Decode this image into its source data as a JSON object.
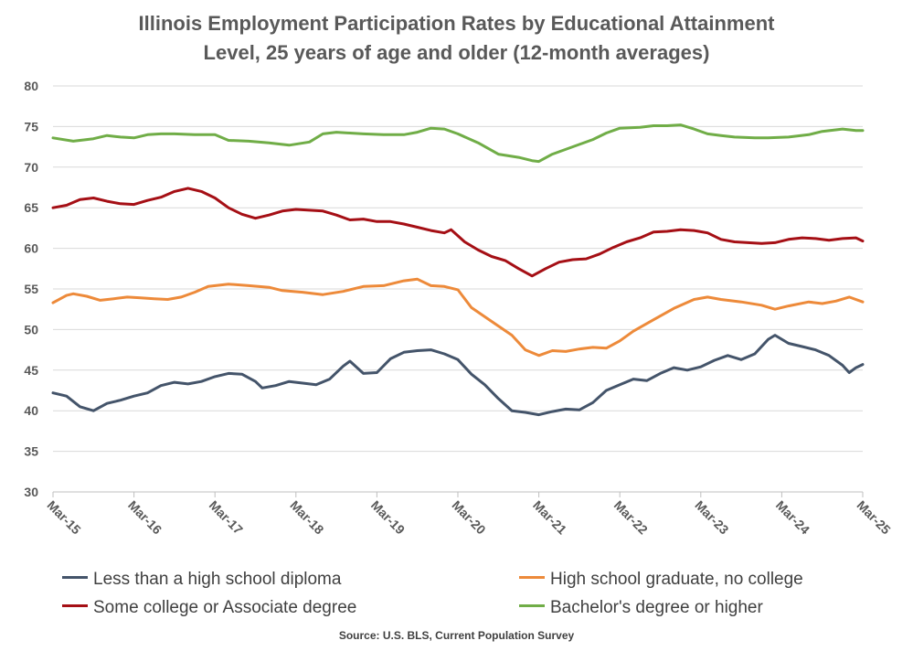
{
  "chart_data": {
    "type": "line",
    "title_line_1": "Illinois Employment Participation Rates by Educational Attainment",
    "title_line_2": "Level, 25 years of age and older (12-month averages)",
    "source": "Source: U.S. BLS, Current Population Survey",
    "ylim": [
      30,
      80
    ],
    "y_ticks": [
      30,
      35,
      40,
      45,
      50,
      55,
      60,
      65,
      70,
      75,
      80
    ],
    "x_range": [
      "2015-03",
      "2025-03"
    ],
    "x_ticks": [
      {
        "label": "Mar-15",
        "date": "2015-03"
      },
      {
        "label": "Mar-16",
        "date": "2016-03"
      },
      {
        "label": "Mar-17",
        "date": "2017-03"
      },
      {
        "label": "Mar-18",
        "date": "2018-03"
      },
      {
        "label": "Mar-19",
        "date": "2019-03"
      },
      {
        "label": "Mar-20",
        "date": "2020-03"
      },
      {
        "label": "Mar-21",
        "date": "2021-03"
      },
      {
        "label": "Mar-22",
        "date": "2022-03"
      },
      {
        "label": "Mar-23",
        "date": "2023-03"
      },
      {
        "label": "Mar-24",
        "date": "2024-03"
      },
      {
        "label": "Mar-25",
        "date": "2025-03"
      }
    ],
    "grid": "horizontal",
    "legend_placement": "bottom",
    "series": [
      {
        "name": "Less than a high school diploma",
        "color": "#44546a",
        "points": [
          [
            "2015-03",
            42.2
          ],
          [
            "2015-05",
            41.8
          ],
          [
            "2015-07",
            40.5
          ],
          [
            "2015-09",
            40.0
          ],
          [
            "2015-11",
            40.9
          ],
          [
            "2016-01",
            41.3
          ],
          [
            "2016-03",
            41.8
          ],
          [
            "2016-05",
            42.2
          ],
          [
            "2016-07",
            43.1
          ],
          [
            "2016-09",
            43.5
          ],
          [
            "2016-11",
            43.3
          ],
          [
            "2017-01",
            43.6
          ],
          [
            "2017-03",
            44.2
          ],
          [
            "2017-05",
            44.6
          ],
          [
            "2017-07",
            44.5
          ],
          [
            "2017-09",
            43.6
          ],
          [
            "2017-10",
            42.8
          ],
          [
            "2017-12",
            43.1
          ],
          [
            "2018-02",
            43.6
          ],
          [
            "2018-04",
            43.4
          ],
          [
            "2018-06",
            43.2
          ],
          [
            "2018-08",
            43.9
          ],
          [
            "2018-10",
            45.5
          ],
          [
            "2018-11",
            46.1
          ],
          [
            "2019-01",
            44.6
          ],
          [
            "2019-03",
            44.7
          ],
          [
            "2019-05",
            46.4
          ],
          [
            "2019-07",
            47.2
          ],
          [
            "2019-09",
            47.4
          ],
          [
            "2019-11",
            47.5
          ],
          [
            "2020-01",
            47.0
          ],
          [
            "2020-03",
            46.3
          ],
          [
            "2020-05",
            44.5
          ],
          [
            "2020-07",
            43.2
          ],
          [
            "2020-09",
            41.5
          ],
          [
            "2020-11",
            40.0
          ],
          [
            "2021-01",
            39.8
          ],
          [
            "2021-03",
            39.5
          ],
          [
            "2021-05",
            39.9
          ],
          [
            "2021-07",
            40.2
          ],
          [
            "2021-09",
            40.1
          ],
          [
            "2021-11",
            41.0
          ],
          [
            "2022-01",
            42.5
          ],
          [
            "2022-03",
            43.2
          ],
          [
            "2022-05",
            43.9
          ],
          [
            "2022-07",
            43.7
          ],
          [
            "2022-09",
            44.6
          ],
          [
            "2022-11",
            45.3
          ],
          [
            "2023-01",
            45.0
          ],
          [
            "2023-03",
            45.4
          ],
          [
            "2023-05",
            46.2
          ],
          [
            "2023-07",
            46.8
          ],
          [
            "2023-09",
            46.3
          ],
          [
            "2023-11",
            47.0
          ],
          [
            "2024-01",
            48.8
          ],
          [
            "2024-02",
            49.3
          ],
          [
            "2024-04",
            48.3
          ],
          [
            "2024-06",
            47.9
          ],
          [
            "2024-08",
            47.5
          ],
          [
            "2024-10",
            46.8
          ],
          [
            "2024-12",
            45.6
          ],
          [
            "2025-01",
            44.7
          ],
          [
            "2025-02",
            45.3
          ],
          [
            "2025-03",
            45.7
          ]
        ]
      },
      {
        "name": "High school graduate, no college",
        "color": "#ed8a3a",
        "points": [
          [
            "2015-03",
            53.3
          ],
          [
            "2015-05",
            54.2
          ],
          [
            "2015-06",
            54.4
          ],
          [
            "2015-08",
            54.1
          ],
          [
            "2015-10",
            53.6
          ],
          [
            "2015-12",
            53.8
          ],
          [
            "2016-02",
            54.0
          ],
          [
            "2016-04",
            53.9
          ],
          [
            "2016-06",
            53.8
          ],
          [
            "2016-08",
            53.7
          ],
          [
            "2016-10",
            54.0
          ],
          [
            "2016-12",
            54.6
          ],
          [
            "2017-02",
            55.3
          ],
          [
            "2017-05",
            55.6
          ],
          [
            "2017-08",
            55.4
          ],
          [
            "2017-11",
            55.2
          ],
          [
            "2018-01",
            54.8
          ],
          [
            "2018-04",
            54.6
          ],
          [
            "2018-07",
            54.3
          ],
          [
            "2018-10",
            54.7
          ],
          [
            "2019-01",
            55.3
          ],
          [
            "2019-04",
            55.4
          ],
          [
            "2019-07",
            56.0
          ],
          [
            "2019-09",
            56.2
          ],
          [
            "2019-11",
            55.4
          ],
          [
            "2020-01",
            55.3
          ],
          [
            "2020-03",
            54.9
          ],
          [
            "2020-05",
            52.7
          ],
          [
            "2020-08",
            51.0
          ],
          [
            "2020-11",
            49.3
          ],
          [
            "2021-01",
            47.5
          ],
          [
            "2021-03",
            46.8
          ],
          [
            "2021-05",
            47.4
          ],
          [
            "2021-07",
            47.3
          ],
          [
            "2021-09",
            47.6
          ],
          [
            "2021-11",
            47.8
          ],
          [
            "2022-01",
            47.7
          ],
          [
            "2022-03",
            48.6
          ],
          [
            "2022-05",
            49.8
          ],
          [
            "2022-08",
            51.2
          ],
          [
            "2022-11",
            52.6
          ],
          [
            "2023-02",
            53.7
          ],
          [
            "2023-04",
            54.0
          ],
          [
            "2023-06",
            53.7
          ],
          [
            "2023-09",
            53.4
          ],
          [
            "2023-12",
            53.0
          ],
          [
            "2024-02",
            52.5
          ],
          [
            "2024-04",
            52.9
          ],
          [
            "2024-07",
            53.4
          ],
          [
            "2024-09",
            53.2
          ],
          [
            "2024-11",
            53.5
          ],
          [
            "2025-01",
            54.0
          ],
          [
            "2025-03",
            53.4
          ]
        ]
      },
      {
        "name": "Some college or Associate degree",
        "color": "#a50f15",
        "points": [
          [
            "2015-03",
            65.0
          ],
          [
            "2015-05",
            65.3
          ],
          [
            "2015-07",
            66.0
          ],
          [
            "2015-09",
            66.2
          ],
          [
            "2015-11",
            65.8
          ],
          [
            "2016-01",
            65.5
          ],
          [
            "2016-03",
            65.4
          ],
          [
            "2016-05",
            65.9
          ],
          [
            "2016-07",
            66.3
          ],
          [
            "2016-09",
            67.0
          ],
          [
            "2016-11",
            67.4
          ],
          [
            "2017-01",
            67.0
          ],
          [
            "2017-03",
            66.2
          ],
          [
            "2017-05",
            65.0
          ],
          [
            "2017-07",
            64.2
          ],
          [
            "2017-09",
            63.7
          ],
          [
            "2017-11",
            64.1
          ],
          [
            "2018-01",
            64.6
          ],
          [
            "2018-03",
            64.8
          ],
          [
            "2018-05",
            64.7
          ],
          [
            "2018-07",
            64.6
          ],
          [
            "2018-09",
            64.1
          ],
          [
            "2018-11",
            63.5
          ],
          [
            "2019-01",
            63.6
          ],
          [
            "2019-03",
            63.3
          ],
          [
            "2019-05",
            63.3
          ],
          [
            "2019-07",
            63.0
          ],
          [
            "2019-09",
            62.6
          ],
          [
            "2019-11",
            62.2
          ],
          [
            "2020-01",
            61.9
          ],
          [
            "2020-02",
            62.3
          ],
          [
            "2020-04",
            60.8
          ],
          [
            "2020-06",
            59.8
          ],
          [
            "2020-08",
            59.0
          ],
          [
            "2020-10",
            58.5
          ],
          [
            "2020-12",
            57.5
          ],
          [
            "2021-02",
            56.6
          ],
          [
            "2021-04",
            57.5
          ],
          [
            "2021-06",
            58.3
          ],
          [
            "2021-08",
            58.6
          ],
          [
            "2021-10",
            58.7
          ],
          [
            "2021-12",
            59.3
          ],
          [
            "2022-02",
            60.1
          ],
          [
            "2022-04",
            60.8
          ],
          [
            "2022-06",
            61.3
          ],
          [
            "2022-08",
            62.0
          ],
          [
            "2022-10",
            62.1
          ],
          [
            "2022-12",
            62.3
          ],
          [
            "2023-02",
            62.2
          ],
          [
            "2023-04",
            61.9
          ],
          [
            "2023-06",
            61.1
          ],
          [
            "2023-08",
            60.8
          ],
          [
            "2023-10",
            60.7
          ],
          [
            "2023-12",
            60.6
          ],
          [
            "2024-02",
            60.7
          ],
          [
            "2024-04",
            61.1
          ],
          [
            "2024-06",
            61.3
          ],
          [
            "2024-08",
            61.2
          ],
          [
            "2024-10",
            61.0
          ],
          [
            "2024-12",
            61.2
          ],
          [
            "2025-02",
            61.3
          ],
          [
            "2025-03",
            60.9
          ]
        ]
      },
      {
        "name": "Bachelor's degree or higher",
        "color": "#70ad47",
        "points": [
          [
            "2015-03",
            73.6
          ],
          [
            "2015-06",
            73.2
          ],
          [
            "2015-09",
            73.5
          ],
          [
            "2015-11",
            73.9
          ],
          [
            "2016-01",
            73.7
          ],
          [
            "2016-03",
            73.6
          ],
          [
            "2016-05",
            74.0
          ],
          [
            "2016-07",
            74.1
          ],
          [
            "2016-09",
            74.1
          ],
          [
            "2016-12",
            74.0
          ],
          [
            "2017-03",
            74.0
          ],
          [
            "2017-05",
            73.3
          ],
          [
            "2017-08",
            73.2
          ],
          [
            "2017-11",
            73.0
          ],
          [
            "2018-02",
            72.7
          ],
          [
            "2018-05",
            73.1
          ],
          [
            "2018-07",
            74.1
          ],
          [
            "2018-09",
            74.3
          ],
          [
            "2018-11",
            74.2
          ],
          [
            "2019-01",
            74.1
          ],
          [
            "2019-04",
            74.0
          ],
          [
            "2019-07",
            74.0
          ],
          [
            "2019-09",
            74.3
          ],
          [
            "2019-11",
            74.8
          ],
          [
            "2020-01",
            74.7
          ],
          [
            "2020-03",
            74.1
          ],
          [
            "2020-06",
            73.0
          ],
          [
            "2020-09",
            71.6
          ],
          [
            "2020-12",
            71.2
          ],
          [
            "2021-02",
            70.8
          ],
          [
            "2021-03",
            70.7
          ],
          [
            "2021-05",
            71.6
          ],
          [
            "2021-08",
            72.5
          ],
          [
            "2021-11",
            73.4
          ],
          [
            "2022-01",
            74.2
          ],
          [
            "2022-03",
            74.8
          ],
          [
            "2022-06",
            74.9
          ],
          [
            "2022-08",
            75.1
          ],
          [
            "2022-10",
            75.1
          ],
          [
            "2022-12",
            75.2
          ],
          [
            "2023-02",
            74.7
          ],
          [
            "2023-04",
            74.1
          ],
          [
            "2023-06",
            73.9
          ],
          [
            "2023-08",
            73.7
          ],
          [
            "2023-11",
            73.6
          ],
          [
            "2024-01",
            73.6
          ],
          [
            "2024-04",
            73.7
          ],
          [
            "2024-07",
            74.0
          ],
          [
            "2024-09",
            74.4
          ],
          [
            "2024-12",
            74.7
          ],
          [
            "2025-02",
            74.5
          ],
          [
            "2025-03",
            74.5
          ]
        ]
      }
    ]
  }
}
